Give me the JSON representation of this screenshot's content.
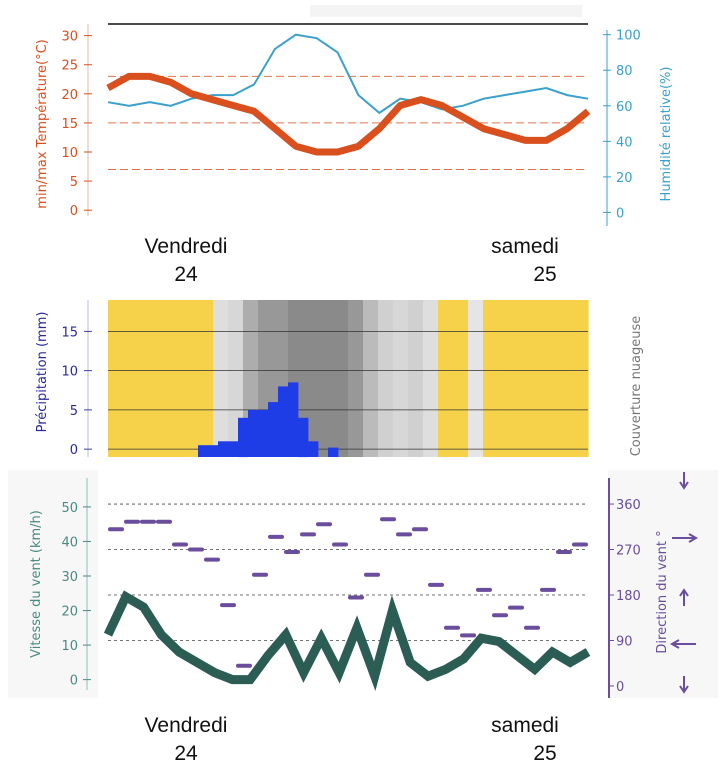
{
  "colors": {
    "temperature": "#d9501e",
    "humidity": "#3aa0cc",
    "precipitation": "#1f3de6",
    "sun": "#f6d24a",
    "wind_speed": "#2c5d55",
    "wind_direction": "#6a4d9c",
    "axis_label_wind": "#4a8a82"
  },
  "days": [
    {
      "name": "Vendredi",
      "date": "24"
    },
    {
      "name": "samedi",
      "date": "25"
    }
  ],
  "chart_data": [
    {
      "type": "line",
      "ylabel": "min/max Température(°C)",
      "ylabel_right": "Humidité relative(%)",
      "ylim": [
        -1,
        32
      ],
      "ylim_right": [
        -2,
        106
      ],
      "yticks": [
        0,
        5,
        10,
        15,
        20,
        25,
        30
      ],
      "yticks_right": [
        0,
        20,
        40,
        60,
        80,
        100
      ],
      "x_day_labels": [
        "Vendredi 24",
        "samedi 25"
      ],
      "series": [
        {
          "axis": "left",
          "style": "thick",
          "values": [
            21,
            23,
            23,
            22,
            20,
            19,
            18,
            17,
            14,
            11,
            10,
            10,
            11,
            14,
            18,
            19,
            18,
            16,
            14,
            13,
            12,
            12,
            14,
            17
          ]
        },
        {
          "axis": "right",
          "style": "thin",
          "values": [
            62,
            60,
            62,
            60,
            64,
            66,
            66,
            72,
            92,
            100,
            98,
            90,
            66,
            56,
            64,
            62,
            58,
            60,
            64,
            66,
            68,
            70,
            66,
            64
          ]
        }
      ]
    },
    {
      "type": "bar",
      "ylabel": "Précipitation (mm)",
      "ylabel_right": "Couverture nuageuse",
      "ylim": [
        -1,
        19
      ],
      "yticks": [
        0,
        5,
        10,
        15
      ],
      "values": [
        0,
        0,
        0,
        0,
        0,
        0,
        0,
        0,
        0,
        0.5,
        0.5,
        1,
        1,
        4,
        5,
        5,
        6,
        8,
        8.5,
        4,
        1,
        0,
        0.2,
        0,
        0,
        0,
        0,
        0,
        0,
        0,
        0,
        0,
        0,
        0,
        0,
        0,
        0,
        0,
        0,
        0,
        0,
        0,
        0,
        0,
        0,
        0,
        0,
        0
      ],
      "cloud_cover": [
        0,
        0,
        0,
        0,
        0,
        0,
        0,
        0.1,
        0.15,
        0.45,
        0.6,
        0.6,
        0.7,
        0.7,
        0.7,
        0.7,
        0.6,
        0.35,
        0.2,
        0.15,
        0.2,
        0.1,
        0,
        0,
        0.05,
        0,
        0,
        0,
        0,
        0,
        0,
        0
      ]
    },
    {
      "type": "line",
      "ylabel": "Vitesse du vent (km/h)",
      "ylabel_right": "Direction du vent °",
      "ylim": [
        -3,
        52
      ],
      "ylim_right": [
        -8,
        368
      ],
      "yticks": [
        0,
        10,
        20,
        30,
        40,
        50
      ],
      "yticks_right": [
        0,
        90,
        180,
        270,
        360
      ],
      "x_day_labels": [
        "Vendredi 24",
        "samedi 25"
      ],
      "series": [
        {
          "axis": "left",
          "style": "thick",
          "values": [
            13,
            24,
            21,
            13,
            8,
            5,
            2,
            0,
            0,
            7,
            13,
            2,
            12,
            2,
            15,
            1,
            20,
            5,
            1,
            3,
            6,
            12,
            11,
            7,
            3,
            8,
            5,
            8
          ]
        },
        {
          "axis": "right",
          "style": "dashes",
          "values": [
            310,
            325,
            325,
            325,
            280,
            270,
            250,
            160,
            40,
            220,
            295,
            265,
            300,
            320,
            280,
            175,
            220,
            330,
            300,
            310,
            200,
            115,
            100,
            190,
            140,
            155,
            115,
            190,
            265,
            280
          ]
        }
      ],
      "direction_arrows": [
        "down",
        "right",
        "up",
        "left",
        "down"
      ]
    }
  ]
}
